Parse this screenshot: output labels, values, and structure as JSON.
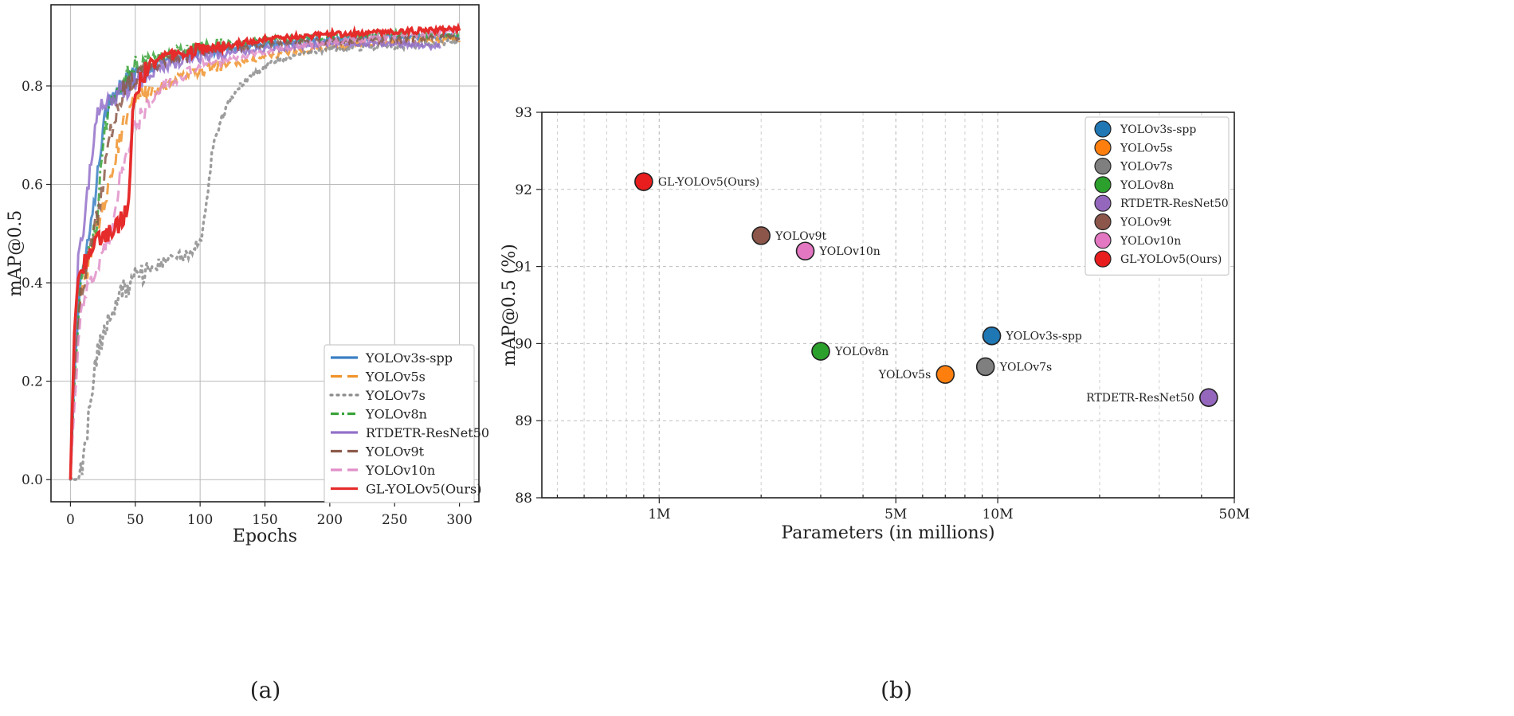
{
  "chart_data": [
    {
      "type": "line",
      "panel_caption": "(a)",
      "xlabel": "Epochs",
      "ylabel": "mAP@0.5",
      "xlim": [
        -15,
        315
      ],
      "ylim": [
        -0.045,
        0.965
      ],
      "xticks": [
        0,
        50,
        100,
        150,
        200,
        250,
        300
      ],
      "yticks": [
        0.0,
        0.2,
        0.4,
        0.6,
        0.8
      ],
      "grid": true,
      "legend_position": "bottom-right",
      "series": [
        {
          "name": "YOLOv3s-spp",
          "color": "#3b7fc4",
          "style": "solid",
          "epochs": 300,
          "points": [
            [
              0,
              0.0
            ],
            [
              3,
              0.22
            ],
            [
              8,
              0.41
            ],
            [
              14,
              0.49
            ],
            [
              20,
              0.6
            ],
            [
              25,
              0.72
            ],
            [
              30,
              0.78
            ],
            [
              40,
              0.8
            ],
            [
              50,
              0.82
            ],
            [
              70,
              0.85
            ],
            [
              100,
              0.87
            ],
            [
              150,
              0.885
            ],
            [
              200,
              0.895
            ],
            [
              250,
              0.9
            ],
            [
              300,
              0.9
            ]
          ]
        },
        {
          "name": "YOLOv5s",
          "color": "#f0932b",
          "style": "dashed",
          "epochs": 300,
          "points": [
            [
              0,
              0.0
            ],
            [
              3,
              0.18
            ],
            [
              8,
              0.38
            ],
            [
              15,
              0.45
            ],
            [
              22,
              0.52
            ],
            [
              30,
              0.6
            ],
            [
              40,
              0.72
            ],
            [
              50,
              0.77
            ],
            [
              70,
              0.8
            ],
            [
              100,
              0.83
            ],
            [
              150,
              0.86
            ],
            [
              200,
              0.88
            ],
            [
              250,
              0.89
            ],
            [
              300,
              0.895
            ]
          ]
        },
        {
          "name": "YOLOv7s",
          "color": "#8c8c8c",
          "style": "dotted",
          "epochs": 300,
          "points": [
            [
              0,
              0.0
            ],
            [
              5,
              0.0
            ],
            [
              10,
              0.03
            ],
            [
              15,
              0.15
            ],
            [
              20,
              0.25
            ],
            [
              30,
              0.33
            ],
            [
              40,
              0.38
            ],
            [
              50,
              0.41
            ],
            [
              70,
              0.44
            ],
            [
              90,
              0.46
            ],
            [
              100,
              0.48
            ],
            [
              105,
              0.56
            ],
            [
              110,
              0.68
            ],
            [
              120,
              0.76
            ],
            [
              130,
              0.8
            ],
            [
              150,
              0.84
            ],
            [
              170,
              0.86
            ],
            [
              200,
              0.875
            ],
            [
              250,
              0.88
            ],
            [
              300,
              0.89
            ]
          ]
        },
        {
          "name": "YOLOv8n",
          "color": "#3aa33a",
          "style": "dashdot",
          "epochs": 300,
          "points": [
            [
              0,
              0.0
            ],
            [
              3,
              0.2
            ],
            [
              8,
              0.4
            ],
            [
              15,
              0.47
            ],
            [
              20,
              0.52
            ],
            [
              25,
              0.68
            ],
            [
              30,
              0.76
            ],
            [
              40,
              0.81
            ],
            [
              50,
              0.84
            ],
            [
              70,
              0.865
            ],
            [
              100,
              0.88
            ],
            [
              150,
              0.895
            ],
            [
              200,
              0.9
            ],
            [
              250,
              0.905
            ],
            [
              300,
              0.905
            ]
          ]
        },
        {
          "name": "RTDETR-ResNet50",
          "color": "#9370c9",
          "style": "solid",
          "epochs": 285,
          "points": [
            [
              0,
              0.0
            ],
            [
              3,
              0.25
            ],
            [
              6,
              0.45
            ],
            [
              10,
              0.5
            ],
            [
              14,
              0.6
            ],
            [
              18,
              0.7
            ],
            [
              22,
              0.75
            ],
            [
              30,
              0.77
            ],
            [
              40,
              0.79
            ],
            [
              50,
              0.81
            ],
            [
              70,
              0.84
            ],
            [
              100,
              0.86
            ],
            [
              150,
              0.875
            ],
            [
              200,
              0.885
            ],
            [
              250,
              0.888
            ],
            [
              270,
              0.882
            ],
            [
              285,
              0.88
            ]
          ]
        },
        {
          "name": "YOLOv9t",
          "color": "#8c5a4a",
          "style": "dashed",
          "epochs": 300,
          "points": [
            [
              0,
              0.0
            ],
            [
              3,
              0.2
            ],
            [
              8,
              0.38
            ],
            [
              15,
              0.46
            ],
            [
              22,
              0.55
            ],
            [
              30,
              0.7
            ],
            [
              40,
              0.79
            ],
            [
              50,
              0.82
            ],
            [
              70,
              0.85
            ],
            [
              100,
              0.87
            ],
            [
              150,
              0.885
            ],
            [
              200,
              0.89
            ],
            [
              250,
              0.895
            ],
            [
              300,
              0.9
            ]
          ]
        },
        {
          "name": "YOLOv10n",
          "color": "#e08fc8",
          "style": "dashed",
          "epochs": 300,
          "points": [
            [
              0,
              0.0
            ],
            [
              3,
              0.15
            ],
            [
              8,
              0.35
            ],
            [
              15,
              0.4
            ],
            [
              22,
              0.44
            ],
            [
              30,
              0.5
            ],
            [
              40,
              0.63
            ],
            [
              50,
              0.72
            ],
            [
              70,
              0.8
            ],
            [
              100,
              0.84
            ],
            [
              150,
              0.87
            ],
            [
              200,
              0.89
            ],
            [
              250,
              0.9
            ],
            [
              300,
              0.91
            ]
          ]
        },
        {
          "name": "GL-YOLOv5(Ours)",
          "color": "#e62b2b",
          "style": "solid",
          "epochs": 300,
          "points": [
            [
              0,
              0.0
            ],
            [
              3,
              0.3
            ],
            [
              6,
              0.4
            ],
            [
              10,
              0.44
            ],
            [
              15,
              0.46
            ],
            [
              20,
              0.48
            ],
            [
              30,
              0.5
            ],
            [
              40,
              0.53
            ],
            [
              45,
              0.56
            ],
            [
              48,
              0.75
            ],
            [
              52,
              0.8
            ],
            [
              60,
              0.84
            ],
            [
              70,
              0.855
            ],
            [
              100,
              0.875
            ],
            [
              150,
              0.895
            ],
            [
              200,
              0.905
            ],
            [
              250,
              0.91
            ],
            [
              300,
              0.915
            ]
          ]
        }
      ]
    },
    {
      "type": "scatter",
      "panel_caption": "(b)",
      "xlabel": "Parameters (in millions)",
      "ylabel": "mAP@0.5 (%)",
      "xscale": "log",
      "xlim": [
        0.45,
        50
      ],
      "ylim": [
        88,
        93
      ],
      "xticks": [
        {
          "value": 1,
          "label": "1M"
        },
        {
          "value": 5,
          "label": "5M"
        },
        {
          "value": 10,
          "label": "10M"
        },
        {
          "value": 50,
          "label": "50M"
        }
      ],
      "yticks": [
        88,
        89,
        90,
        91,
        92,
        93
      ],
      "grid": true,
      "legend_position": "top-right",
      "points": [
        {
          "name": "YOLOv3s-spp",
          "params_m": 9.6,
          "map50": 90.1,
          "color": "#1f77b4",
          "label_side": "right"
        },
        {
          "name": "YOLOv5s",
          "params_m": 7.0,
          "map50": 89.6,
          "color": "#ff7f0e",
          "label_side": "left"
        },
        {
          "name": "YOLOv7s",
          "params_m": 9.2,
          "map50": 89.7,
          "color": "#7f7f7f",
          "label_side": "right"
        },
        {
          "name": "YOLOv8n",
          "params_m": 3.0,
          "map50": 89.9,
          "color": "#2ca02c",
          "label_side": "right"
        },
        {
          "name": "RTDETR-ResNet50",
          "params_m": 42.0,
          "map50": 89.3,
          "color": "#9467bd",
          "label_side": "left"
        },
        {
          "name": "YOLOv9t",
          "params_m": 2.0,
          "map50": 91.4,
          "color": "#8c564b",
          "label_side": "right"
        },
        {
          "name": "YOLOv10n",
          "params_m": 2.7,
          "map50": 91.2,
          "color": "#e377c2",
          "label_side": "right"
        },
        {
          "name": "GL-YOLOv5(Ours)",
          "params_m": 0.9,
          "map50": 92.1,
          "color": "#e81d1d",
          "label_side": "right"
        }
      ]
    }
  ]
}
